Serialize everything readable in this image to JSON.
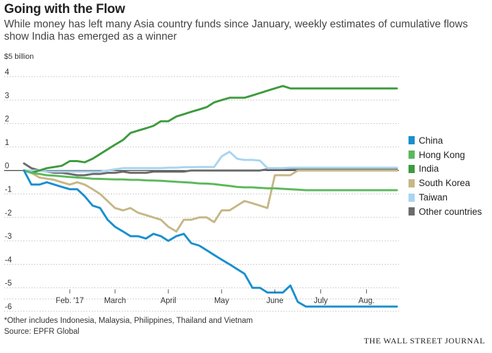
{
  "header": {
    "title": "Going with the Flow",
    "subtitle": "While money has left many Asia country funds since January, weekly estimates of cumulative flows show India has emerged as a winner",
    "unit_label": "$5 billion"
  },
  "footer": {
    "note": "*Other includes Indonesia, Malaysia, Philippines, Thailand and Vietnam",
    "source": "Source: EPFR Global",
    "brand": "THE WALL STREET JOURNAL"
  },
  "chart_data": {
    "type": "line",
    "title": "Going with the Flow",
    "subtitle": "While money has left many Asia country funds since January, weekly estimates of cumulative flows show India has emerged as a winner",
    "ylabel": "$5 billion",
    "xlabel": "",
    "ylim": [
      -6.3,
      4.8
    ],
    "yticks": [
      4,
      3,
      2,
      1,
      0,
      -1,
      -2,
      -3,
      -4,
      -5,
      -6
    ],
    "grid": "horizontal dotted",
    "legend": "right",
    "x": [
      0,
      0.14,
      0.29,
      0.43,
      0.57,
      0.71,
      0.86,
      1.0,
      1.14,
      1.29,
      1.43,
      1.57,
      1.71,
      1.86,
      2.0,
      2.14,
      2.29,
      2.43,
      2.57,
      2.71,
      2.86,
      3.0,
      3.14,
      3.29,
      3.43,
      3.57,
      3.71,
      3.86,
      4.0,
      4.14,
      4.29,
      4.43,
      4.57,
      4.71,
      4.86,
      5.0,
      5.14,
      5.29,
      5.43,
      5.57,
      5.71,
      5.86,
      6.0,
      6.14,
      6.29,
      6.43,
      6.57,
      6.71,
      6.86,
      7.0
    ],
    "xticks": [
      {
        "label": "Feb. '17",
        "at": 0.86
      },
      {
        "label": "March",
        "at": 1.71
      },
      {
        "label": "April",
        "at": 2.71
      },
      {
        "label": "May",
        "at": 3.71
      },
      {
        "label": "June",
        "at": 4.71
      },
      {
        "label": "July",
        "at": 5.57
      },
      {
        "label": "Aug.",
        "at": 6.43
      }
    ],
    "series": [
      {
        "name": "China",
        "color": "#1a8fce",
        "values": [
          0,
          -0.6,
          -0.6,
          -0.5,
          -0.6,
          -0.7,
          -0.8,
          -0.8,
          -1.1,
          -1.5,
          -1.6,
          -2.1,
          -2.4,
          -2.6,
          -2.8,
          -2.8,
          -2.9,
          -2.7,
          -2.8,
          -3.0,
          -2.8,
          -2.7,
          -3.1,
          -3.2,
          -3.4,
          -3.6,
          -3.8,
          -4.0,
          -4.2,
          -4.4,
          -5.0,
          -5.0,
          -5.2,
          -5.2,
          -5.2,
          -4.9,
          -5.6,
          -5.8,
          -5.8,
          -5.8,
          -5.8,
          -5.8,
          -5.8,
          -5.8,
          -5.8,
          -5.8,
          -5.8,
          -5.8,
          -5.8,
          -5.8
        ]
      },
      {
        "name": "Hong Kong",
        "color": "#5cb85c",
        "values": [
          0,
          -0.1,
          -0.15,
          -0.2,
          -0.22,
          -0.25,
          -0.28,
          -0.3,
          -0.32,
          -0.35,
          -0.36,
          -0.37,
          -0.38,
          -0.38,
          -0.4,
          -0.4,
          -0.42,
          -0.43,
          -0.44,
          -0.46,
          -0.48,
          -0.5,
          -0.52,
          -0.55,
          -0.56,
          -0.58,
          -0.62,
          -0.66,
          -0.7,
          -0.72,
          -0.72,
          -0.74,
          -0.76,
          -0.76,
          -0.78,
          -0.8,
          -0.82,
          -0.84,
          -0.84,
          -0.84,
          -0.84,
          -0.84,
          -0.84,
          -0.84,
          -0.84,
          -0.84,
          -0.84,
          -0.84,
          -0.84,
          -0.84
        ]
      },
      {
        "name": "India",
        "color": "#3e9b3e",
        "values": [
          0,
          -0.1,
          0.0,
          0.1,
          0.15,
          0.2,
          0.4,
          0.4,
          0.35,
          0.5,
          0.7,
          0.9,
          1.1,
          1.3,
          1.6,
          1.7,
          1.8,
          1.9,
          2.1,
          2.1,
          2.3,
          2.4,
          2.5,
          2.6,
          2.7,
          2.9,
          3.0,
          3.1,
          3.1,
          3.1,
          3.2,
          3.3,
          3.4,
          3.5,
          3.6,
          3.5,
          3.5,
          3.5,
          3.5,
          3.5,
          3.5,
          3.5,
          3.5,
          3.5,
          3.5,
          3.5,
          3.5,
          3.5,
          3.5,
          3.5
        ]
      },
      {
        "name": "South Korea",
        "color": "#c6b786",
        "values": [
          0,
          -0.1,
          -0.3,
          -0.35,
          -0.4,
          -0.5,
          -0.6,
          -0.5,
          -0.6,
          -0.8,
          -1.0,
          -1.3,
          -1.6,
          -1.7,
          -1.6,
          -1.8,
          -1.9,
          -2.0,
          -2.1,
          -2.4,
          -2.6,
          -2.1,
          -2.1,
          -2.0,
          -2.0,
          -2.2,
          -1.7,
          -1.7,
          -1.5,
          -1.3,
          -1.4,
          -1.5,
          -1.6,
          -0.2,
          -0.2,
          -0.2,
          0.0,
          0.0,
          0.0,
          0.0,
          0.0,
          0.0,
          0.0,
          0.0,
          0.0,
          0.0,
          0.0,
          0.0,
          0.0,
          0.0
        ]
      },
      {
        "name": "Taiwan",
        "color": "#a8d5f0",
        "values": [
          0,
          0.0,
          0.0,
          -0.05,
          -0.05,
          -0.05,
          -0.05,
          -0.05,
          -0.05,
          -0.05,
          -0.05,
          0.0,
          0.05,
          0.1,
          0.1,
          0.1,
          0.1,
          0.1,
          0.1,
          0.12,
          0.12,
          0.14,
          0.14,
          0.15,
          0.15,
          0.15,
          0.6,
          0.8,
          0.5,
          0.45,
          0.45,
          0.42,
          0.1,
          0.1,
          0.1,
          0.12,
          0.12,
          0.12,
          0.12,
          0.12,
          0.12,
          0.12,
          0.12,
          0.12,
          0.12,
          0.12,
          0.12,
          0.12,
          0.12,
          0.12
        ]
      },
      {
        "name": "Other countries",
        "color": "#6b6b6b",
        "values": [
          0.3,
          0.1,
          0.0,
          -0.05,
          -0.1,
          -0.1,
          -0.15,
          -0.2,
          -0.2,
          -0.15,
          -0.15,
          -0.1,
          -0.1,
          -0.05,
          -0.1,
          -0.1,
          -0.1,
          -0.05,
          -0.05,
          -0.05,
          -0.05,
          -0.05,
          0.0,
          0.0,
          0.0,
          0.0,
          0.0,
          0.0,
          0.0,
          0.0,
          0.0,
          0.0,
          0.05,
          0.05,
          0.05,
          0.05,
          0.05,
          0.05,
          0.05,
          0.05,
          0.05,
          0.05,
          0.05,
          0.05,
          0.05,
          0.05,
          0.05,
          0.05,
          0.05,
          0.05
        ]
      }
    ]
  }
}
